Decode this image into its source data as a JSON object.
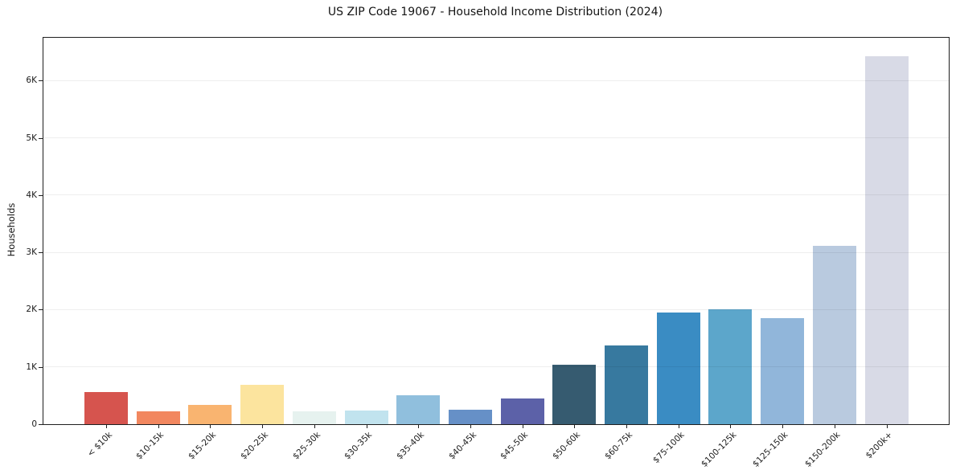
{
  "chart_data": {
    "type": "bar",
    "title": "US ZIP Code 19067 - Household Income Distribution (2024)",
    "xlabel": "",
    "ylabel": "Households",
    "categories": [
      "< $10k",
      "$10-15k",
      "$15-20k",
      "$20-25k",
      "$25-30k",
      "$30-35k",
      "$35-40k",
      "$40-45k",
      "$45-50k",
      "$50-60k",
      "$60-75k",
      "$75-100k",
      "$100-125k",
      "$125-150k",
      "$150-200k",
      "$200k+"
    ],
    "values": [
      560,
      225,
      335,
      690,
      220,
      240,
      505,
      250,
      450,
      1040,
      1370,
      1950,
      2010,
      1850,
      3120,
      6430
    ],
    "bar_colors": [
      "#d6544e",
      "#f2875f",
      "#f9b470",
      "#fce49e",
      "#e6f2ef",
      "#c1e3ee",
      "#90bfdd",
      "#6690c7",
      "#5c61a8",
      "#365b70",
      "#37799f",
      "#3a8cc3",
      "#5ca6cb",
      "#91b6da",
      "#b9cadf",
      "#d8dae6"
    ],
    "ylim": [
      0,
      6750
    ],
    "y_ticks": [
      {
        "value": 0,
        "label": "0"
      },
      {
        "value": 1000,
        "label": "1K"
      },
      {
        "value": 2000,
        "label": "2K"
      },
      {
        "value": 3000,
        "label": "3K"
      },
      {
        "value": 4000,
        "label": "4K"
      },
      {
        "value": 5000,
        "label": "5K"
      },
      {
        "value": 6000,
        "label": "6K"
      }
    ],
    "grid": "horizontal",
    "legend": "none"
  }
}
